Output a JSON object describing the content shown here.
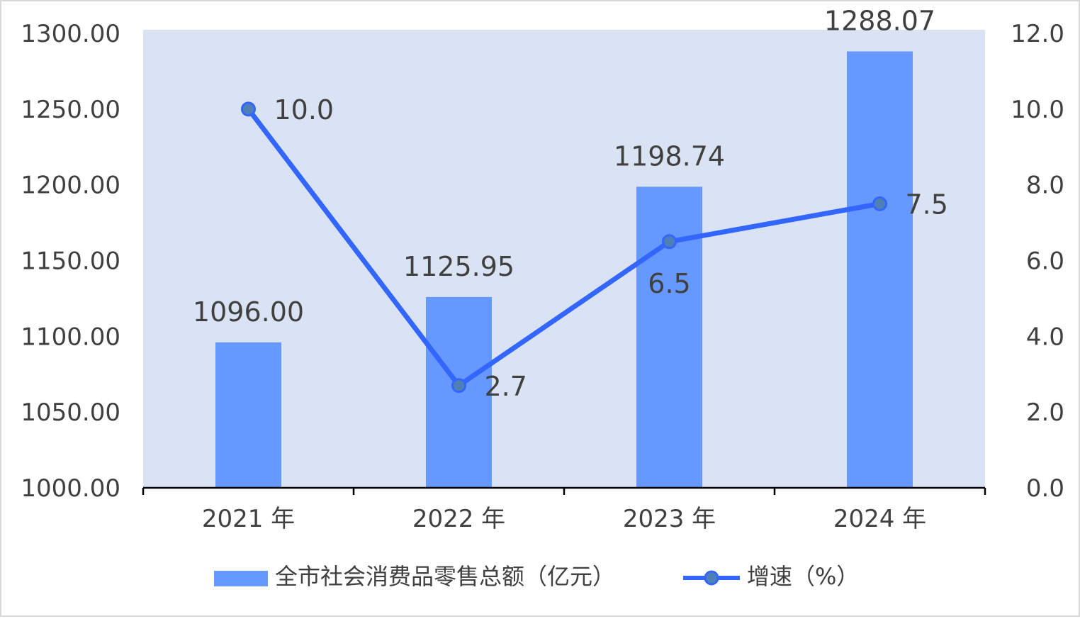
{
  "chart_data": {
    "type": "bar",
    "categories": [
      "2021 年",
      "2022 年",
      "2023 年",
      "2024 年"
    ],
    "series": [
      {
        "name": "全市社会消费品零售总额（亿元）",
        "type": "bar",
        "axis": "left",
        "values": [
          1096.0,
          1125.95,
          1198.74,
          1288.07
        ],
        "labels": [
          "1096.00",
          "1125.95",
          "1198.74",
          "1288.07"
        ],
        "color": "#6699ff"
      },
      {
        "name": "增速（%）",
        "type": "line",
        "axis": "right",
        "values": [
          10.0,
          2.7,
          6.5,
          7.5
        ],
        "labels": [
          "10.0",
          "2.7",
          "6.5",
          "7.5"
        ],
        "color": "#3366ff",
        "marker_color": "#4e7fb6"
      }
    ],
    "y_left": {
      "ylim": [
        1000,
        1300
      ],
      "ticks": [
        "1000.00",
        "1050.00",
        "1100.00",
        "1150.00",
        "1200.00",
        "1250.00",
        "1300.00"
      ]
    },
    "y_right": {
      "ylim": [
        0,
        12
      ],
      "ticks": [
        "0.0",
        "2.0",
        "4.0",
        "6.0",
        "8.0",
        "10.0",
        "12.0"
      ]
    },
    "plot_background": "#dae3f3",
    "grid": false,
    "legend": "bottom"
  }
}
